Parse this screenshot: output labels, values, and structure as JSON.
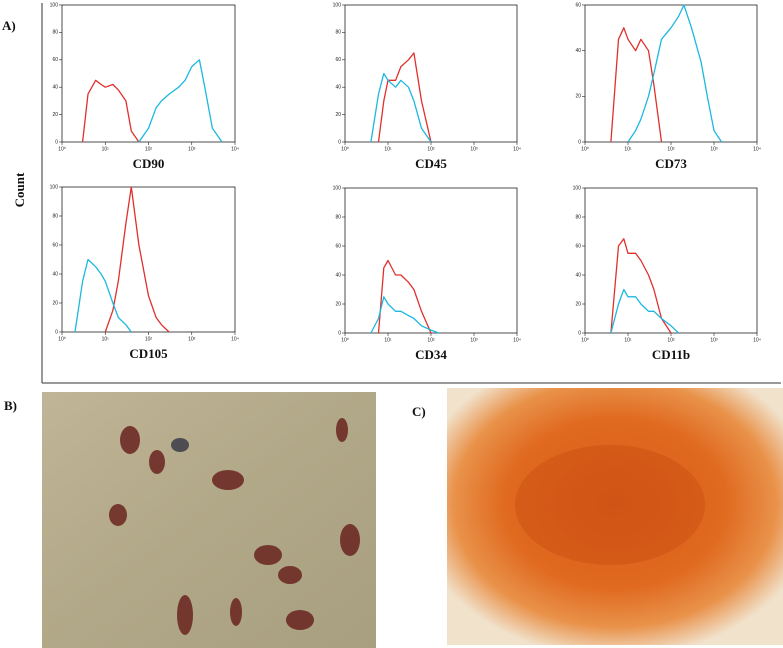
{
  "figure": {
    "panels": [
      "A)",
      "B)",
      "C)"
    ],
    "ylabel": "Count"
  },
  "chart_data": [
    {
      "type": "line",
      "xlabel": "CD90",
      "xscale": "log",
      "xlim": [
        1,
        10000
      ],
      "ylim": [
        0,
        100
      ],
      "xticks": [
        {
          "value": 1,
          "label": "10⁰"
        },
        {
          "value": 10,
          "label": "10¹"
        },
        {
          "value": 100,
          "label": "10²"
        },
        {
          "value": 1000,
          "label": "10³"
        },
        {
          "value": 10000,
          "label": "10⁴"
        }
      ],
      "yticks": [
        0,
        20,
        40,
        60,
        80,
        100
      ],
      "x": [
        2,
        3,
        4,
        6,
        8,
        10,
        15,
        20,
        30,
        40,
        60,
        100,
        150,
        200,
        300,
        500,
        700,
        1000,
        1500,
        2000,
        3000,
        5000
      ],
      "series": [
        {
          "color": "#e0302c",
          "values": [
            null,
            0,
            35,
            45,
            42,
            40,
            42,
            38,
            30,
            8,
            0,
            null,
            null,
            null,
            null,
            null,
            null,
            null,
            null,
            null,
            null,
            null
          ]
        },
        {
          "color": "#1cb8e0",
          "values": [
            null,
            null,
            null,
            null,
            null,
            null,
            null,
            null,
            null,
            null,
            0,
            10,
            25,
            30,
            35,
            40,
            45,
            55,
            60,
            40,
            10,
            0
          ]
        }
      ]
    },
    {
      "type": "line",
      "xlabel": "CD45",
      "xscale": "log",
      "xlim": [
        1,
        10000
      ],
      "ylim": [
        0,
        100
      ],
      "xticks": [
        {
          "value": 1,
          "label": "10⁰"
        },
        {
          "value": 10,
          "label": "10¹"
        },
        {
          "value": 100,
          "label": "10²"
        },
        {
          "value": 1000,
          "label": "10³"
        },
        {
          "value": 10000,
          "label": "10⁴"
        }
      ],
      "yticks": [
        0,
        20,
        40,
        60,
        80,
        100
      ],
      "x": [
        2,
        3,
        4,
        6,
        8,
        10,
        15,
        20,
        30,
        40,
        60,
        100,
        150,
        200,
        300,
        500,
        700,
        1000,
        1500,
        2000,
        3000,
        5000
      ],
      "series": [
        {
          "color": "#e0302c",
          "values": [
            null,
            null,
            null,
            0,
            30,
            45,
            45,
            55,
            60,
            65,
            30,
            0,
            null,
            null,
            null,
            null,
            null,
            null,
            null,
            null,
            null,
            null
          ]
        },
        {
          "color": "#1cb8e0",
          "values": [
            null,
            null,
            0,
            35,
            50,
            45,
            40,
            45,
            40,
            30,
            10,
            0,
            null,
            null,
            null,
            null,
            null,
            null,
            null,
            null,
            null,
            null
          ]
        }
      ]
    },
    {
      "type": "line",
      "xlabel": "CD73",
      "xscale": "log",
      "xlim": [
        1,
        10000
      ],
      "ylim": [
        0,
        60
      ],
      "xticks": [
        {
          "value": 1,
          "label": "10⁰"
        },
        {
          "value": 10,
          "label": "10¹"
        },
        {
          "value": 100,
          "label": "10²"
        },
        {
          "value": 1000,
          "label": "10³"
        },
        {
          "value": 10000,
          "label": "10⁴"
        }
      ],
      "yticks": [
        0,
        20,
        40,
        60
      ],
      "x": [
        2,
        3,
        4,
        6,
        8,
        10,
        15,
        20,
        30,
        40,
        60,
        100,
        150,
        200,
        300,
        500,
        700,
        1000,
        1500,
        2000,
        3000,
        5000
      ],
      "series": [
        {
          "color": "#e0302c",
          "values": [
            null,
            null,
            0,
            45,
            50,
            45,
            40,
            45,
            40,
            25,
            0,
            null,
            null,
            null,
            null,
            null,
            null,
            null,
            null,
            null,
            null,
            null
          ]
        },
        {
          "color": "#1cb8e0",
          "values": [
            null,
            null,
            null,
            null,
            null,
            0,
            5,
            10,
            20,
            30,
            45,
            50,
            55,
            60,
            50,
            35,
            20,
            5,
            0,
            null,
            null,
            null
          ]
        }
      ]
    },
    {
      "type": "line",
      "xlabel": "CD105",
      "xscale": "log",
      "xlim": [
        1,
        10000
      ],
      "ylim": [
        0,
        100
      ],
      "xticks": [
        {
          "value": 1,
          "label": "10⁰"
        },
        {
          "value": 10,
          "label": "10¹"
        },
        {
          "value": 100,
          "label": "10²"
        },
        {
          "value": 1000,
          "label": "10³"
        },
        {
          "value": 10000,
          "label": "10⁴"
        }
      ],
      "yticks": [
        0,
        20,
        40,
        60,
        80,
        100
      ],
      "x": [
        2,
        3,
        4,
        6,
        8,
        10,
        15,
        20,
        30,
        40,
        60,
        100,
        150,
        200,
        300,
        500,
        700,
        1000,
        1500,
        2000,
        3000,
        5000
      ],
      "series": [
        {
          "color": "#e0302c",
          "values": [
            null,
            null,
            null,
            null,
            null,
            0,
            15,
            35,
            75,
            100,
            60,
            25,
            10,
            5,
            0,
            null,
            null,
            null,
            null,
            null,
            null,
            null
          ]
        },
        {
          "color": "#1cb8e0",
          "values": [
            0,
            35,
            50,
            45,
            40,
            35,
            20,
            10,
            5,
            0,
            null,
            null,
            null,
            null,
            null,
            null,
            null,
            null,
            null,
            null,
            null,
            null
          ]
        }
      ]
    },
    {
      "type": "line",
      "xlabel": "CD34",
      "xscale": "log",
      "xlim": [
        1,
        10000
      ],
      "ylim": [
        0,
        100
      ],
      "xticks": [
        {
          "value": 1,
          "label": "10⁰"
        },
        {
          "value": 10,
          "label": "10¹"
        },
        {
          "value": 100,
          "label": "10²"
        },
        {
          "value": 1000,
          "label": "10³"
        },
        {
          "value": 10000,
          "label": "10⁴"
        }
      ],
      "yticks": [
        0,
        20,
        40,
        60,
        80,
        100
      ],
      "x": [
        2,
        3,
        4,
        6,
        8,
        10,
        15,
        20,
        30,
        40,
        60,
        100,
        150,
        200,
        300,
        500,
        700,
        1000,
        1500,
        2000,
        3000,
        5000
      ],
      "series": [
        {
          "color": "#e0302c",
          "values": [
            null,
            null,
            null,
            0,
            45,
            50,
            40,
            40,
            35,
            30,
            15,
            0,
            null,
            null,
            null,
            null,
            null,
            null,
            null,
            null,
            null,
            null
          ]
        },
        {
          "color": "#1cb8e0",
          "values": [
            null,
            null,
            0,
            10,
            25,
            20,
            15,
            15,
            12,
            10,
            5,
            2,
            0,
            null,
            null,
            null,
            null,
            null,
            null,
            null,
            null,
            null
          ]
        }
      ]
    },
    {
      "type": "line",
      "xlabel": "CD11b",
      "xscale": "log",
      "xlim": [
        1,
        10000
      ],
      "ylim": [
        0,
        100
      ],
      "xticks": [
        {
          "value": 1,
          "label": "10⁰"
        },
        {
          "value": 10,
          "label": "10¹"
        },
        {
          "value": 100,
          "label": "10²"
        },
        {
          "value": 1000,
          "label": "10³"
        },
        {
          "value": 10000,
          "label": "10⁴"
        }
      ],
      "yticks": [
        0,
        20,
        40,
        60,
        80,
        100
      ],
      "x": [
        2,
        3,
        4,
        6,
        8,
        10,
        15,
        20,
        30,
        40,
        60,
        100,
        150,
        200,
        300,
        500,
        700,
        1000,
        1500,
        2000,
        3000,
        5000
      ],
      "series": [
        {
          "color": "#e0302c",
          "values": [
            null,
            null,
            0,
            60,
            65,
            55,
            55,
            50,
            40,
            30,
            10,
            0,
            null,
            null,
            null,
            null,
            null,
            null,
            null,
            null,
            null,
            null
          ]
        },
        {
          "color": "#1cb8e0",
          "values": [
            null,
            null,
            0,
            20,
            30,
            25,
            25,
            20,
            15,
            15,
            10,
            5,
            0,
            null,
            null,
            null,
            null,
            null,
            null,
            null,
            null,
            null
          ]
        }
      ]
    }
  ]
}
